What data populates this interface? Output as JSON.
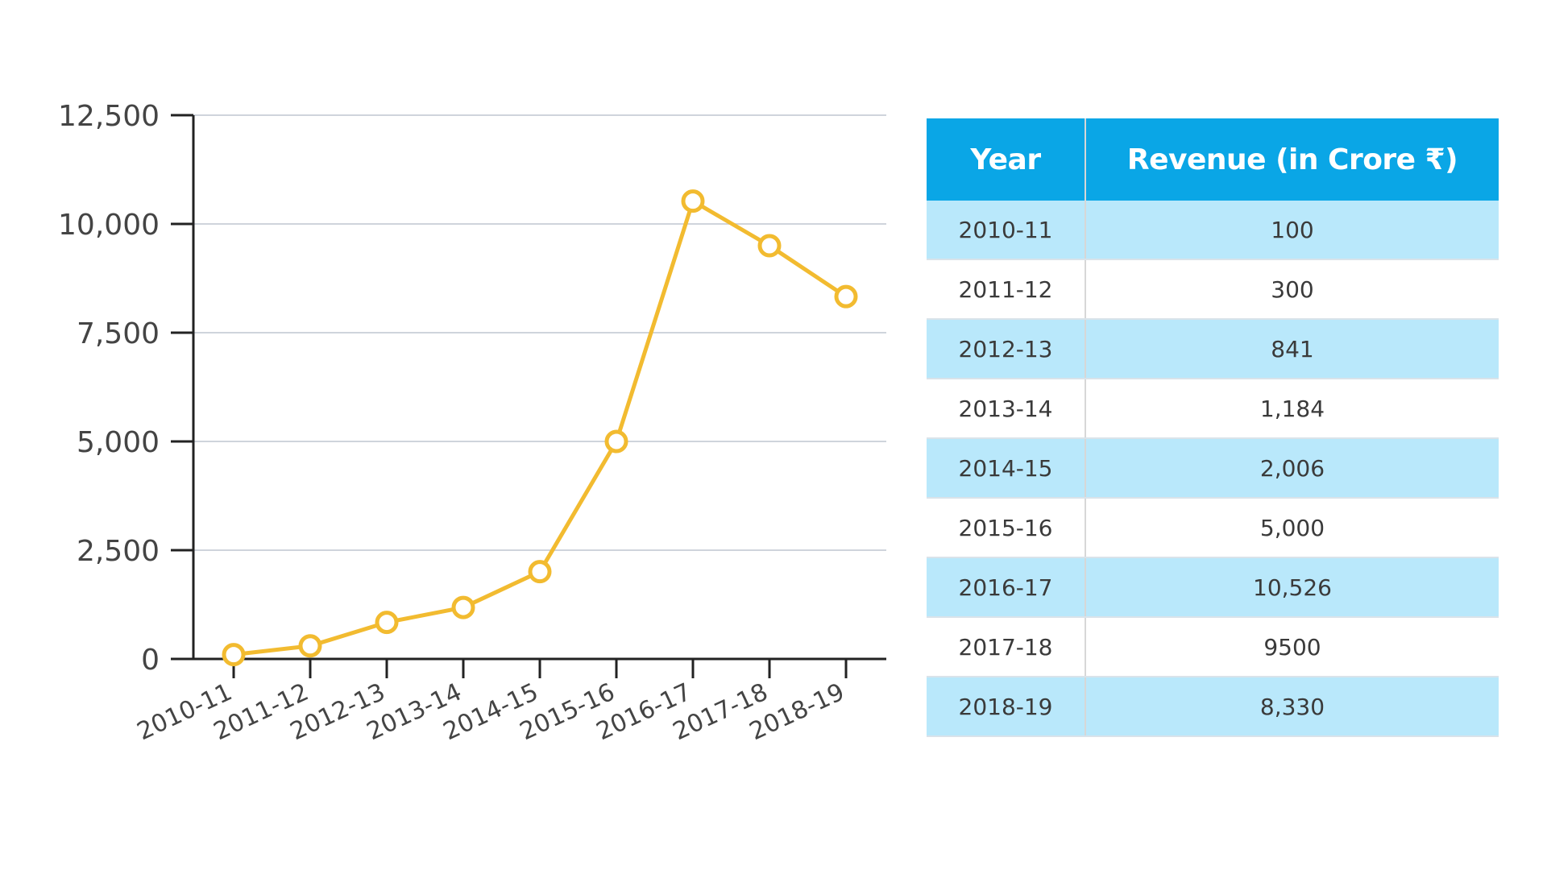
{
  "chart_data": {
    "type": "line",
    "categories": [
      "2010-11",
      "2011-12",
      "2012-13",
      "2013-14",
      "2014-15",
      "2015-16",
      "2016-17",
      "2017-18",
      "2018-19"
    ],
    "values": [
      100,
      300,
      841,
      1184,
      2006,
      5000,
      10526,
      9500,
      8330
    ],
    "ylim": [
      0,
      12500
    ],
    "yticks": [
      0,
      2500,
      5000,
      7500,
      10000,
      12500
    ],
    "ytick_labels": [
      "0",
      "2,500",
      "5,000",
      "7,500",
      "10,000",
      "12,500"
    ],
    "grid": true,
    "line_color": "#f2bb30",
    "title": "",
    "xlabel": "",
    "ylabel": ""
  },
  "table": {
    "headers": [
      "Year",
      "Revenue (in Crore ₹)"
    ],
    "rows": [
      {
        "year": "2010-11",
        "revenue": "100"
      },
      {
        "year": "2011-12",
        "revenue": "300"
      },
      {
        "year": "2012-13",
        "revenue": "841"
      },
      {
        "year": "2013-14",
        "revenue": "1,184"
      },
      {
        "year": "2014-15",
        "revenue": "2,006"
      },
      {
        "year": "2015-16",
        "revenue": "5,000"
      },
      {
        "year": "2016-17",
        "revenue": "10,526"
      },
      {
        "year": "2017-18",
        "revenue": "9500"
      },
      {
        "year": "2018-19",
        "revenue": "8,330"
      }
    ],
    "header_color": "#0aa6e6",
    "stripe_color": "#b9e8fb"
  }
}
